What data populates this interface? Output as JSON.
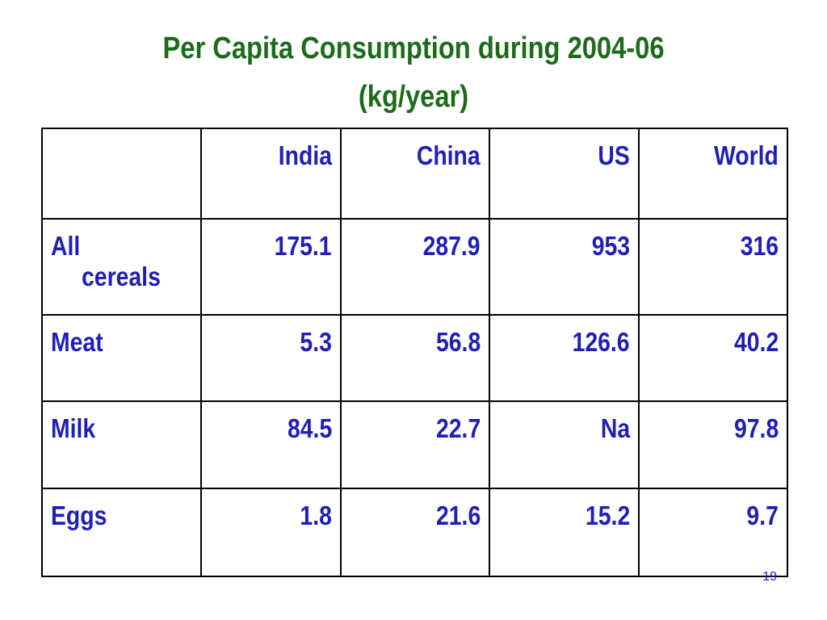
{
  "slide": {
    "title_line1": "Per Capita Consumption during 2004-06",
    "title_line2": "(kg/year)",
    "page_number": "19"
  },
  "table": {
    "header": [
      "",
      "India",
      "China",
      "US",
      "World"
    ],
    "rows": [
      {
        "label_line1": "All",
        "label_line2": "cereals",
        "values": [
          "175.1",
          "287.9",
          "953",
          "316"
        ]
      },
      {
        "label_line1": "Meat",
        "values": [
          "5.3",
          "56.8",
          "126.6",
          "40.2"
        ]
      },
      {
        "label_line1": "Milk",
        "values": [
          "84.5",
          "22.7",
          "Na",
          "97.8"
        ]
      },
      {
        "label_line1": "Eggs",
        "values": [
          "1.8",
          "21.6",
          "15.2",
          "9.7"
        ]
      }
    ]
  },
  "colors": {
    "title": "#1c6b1c",
    "table_text": "#1f1fb8",
    "border": "#000000"
  }
}
